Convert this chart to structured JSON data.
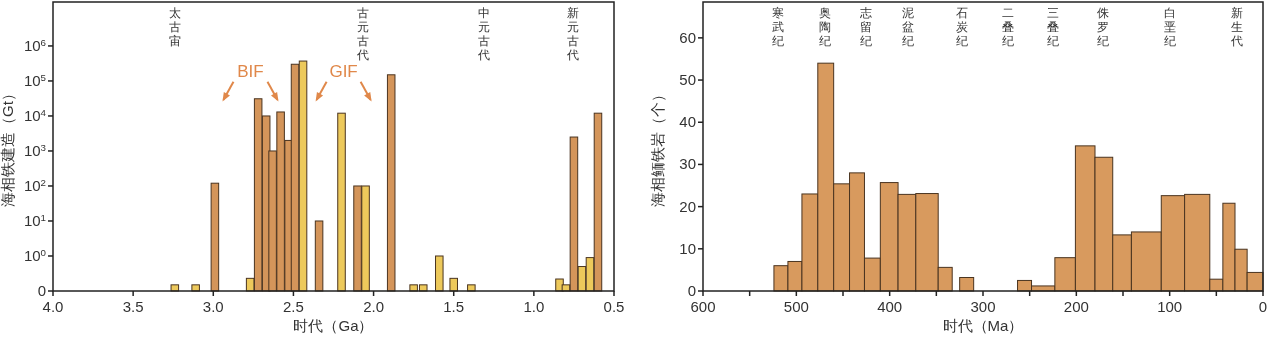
{
  "chart_data": [
    {
      "type": "bar",
      "xlabel": "时代（Ga）",
      "ylabel": "海相铁建造（Gt）",
      "log": true,
      "xlim": [
        4.0,
        0.5
      ],
      "xticks": [
        {
          "value": 4,
          "label": "4.0"
        },
        {
          "value": 3.5,
          "label": "3.5"
        },
        {
          "value": 3,
          "label": "3.0"
        },
        {
          "value": 2.5,
          "label": "2.5"
        },
        {
          "value": 2,
          "label": "2.0"
        },
        {
          "value": 1.5,
          "label": "1.5"
        },
        {
          "value": 1,
          "label": "1.0"
        },
        {
          "value": 0.5,
          "label": "0.5"
        }
      ],
      "ylim": [
        0.1,
        18000000
      ],
      "yticks": [
        {
          "value": 0.1,
          "label": "0"
        },
        {
          "value": 1,
          "label": "10$^{0}$"
        },
        {
          "value": 10,
          "label": "10$^{1}$"
        },
        {
          "value": 100,
          "label": "10$^{2}$"
        },
        {
          "value": 1000,
          "label": "10$^{3}$"
        },
        {
          "value": 10000,
          "label": "10$^{4}$"
        },
        {
          "value": 100000,
          "label": "10$^{5}$"
        },
        {
          "value": 1000000,
          "label": "10$^{6}$"
        }
      ],
      "series": [
        {
          "color": "#d4955a",
          "x": [
            2.99,
            2.72,
            2.67,
            2.63,
            2.58,
            2.53,
            2.49,
            2.34,
            2.1,
            1.89,
            0.75,
            0.6
          ],
          "values": [
            120,
            31000,
            10000,
            1000,
            13000,
            2000,
            300000,
            10,
            100,
            150000,
            2500,
            12000
          ]
        },
        {
          "color": "#edc95b",
          "x": [
            3.24,
            3.11,
            2.77,
            2.44,
            2.2,
            2.05,
            1.75,
            1.69,
            1.59,
            1.5,
            1.39,
            0.84,
            0.8,
            0.7,
            0.65
          ],
          "values": [
            0.15,
            0.15,
            0.23,
            370000,
            12000,
            100,
            0.15,
            0.15,
            1,
            0.23,
            0.15,
            0.22,
            0.15,
            0.5,
            0.9
          ]
        }
      ],
      "annotations": [
        "太古宙",
        "古元古代",
        "中元古代",
        "新元古代",
        "BIF",
        "GIF"
      ]
    },
    {
      "type": "histogram",
      "xlabel": "时代（Ma）",
      "ylabel": "海相鲕铁岩（个）",
      "color": "#d89a5e",
      "bins": [
        524,
        509,
        494,
        477,
        460,
        443,
        427,
        410,
        391,
        372,
        348,
        333,
        325,
        310,
        263,
        248,
        223,
        201,
        180,
        161,
        141,
        109,
        84,
        57,
        43,
        30,
        17,
        0
      ],
      "values": [
        6,
        7,
        23,
        54,
        25.4,
        28,
        7.8,
        25.7,
        22.9,
        23.1,
        5.6,
        0,
        3.2,
        0,
        2.5,
        1.2,
        7.9,
        34.4,
        31.7,
        13.3,
        14,
        22.6,
        22.9,
        2.8,
        20.8,
        9.9,
        4.4
      ],
      "xlim": [
        600,
        0
      ],
      "xticks": [
        600,
        {
          "value": 550,
          "label": null
        },
        500,
        {
          "value": 450,
          "label": null
        },
        400,
        {
          "value": 350,
          "label": null
        },
        300,
        {
          "value": 250,
          "label": null
        },
        200,
        {
          "value": 150,
          "label": null
        },
        100,
        {
          "value": 50,
          "label": null
        },
        0
      ],
      "ylim": [
        0,
        68.5
      ],
      "yticks": [
        0,
        10,
        20,
        30,
        40,
        50,
        60
      ],
      "annotations": [
        "寒武纪",
        "奥陶纪",
        "志留纪",
        "泥盆纪",
        "石炭纪",
        "二叠纪",
        "三叠纪",
        "侏罗纪",
        "白垩纪",
        "新生代"
      ]
    }
  ]
}
